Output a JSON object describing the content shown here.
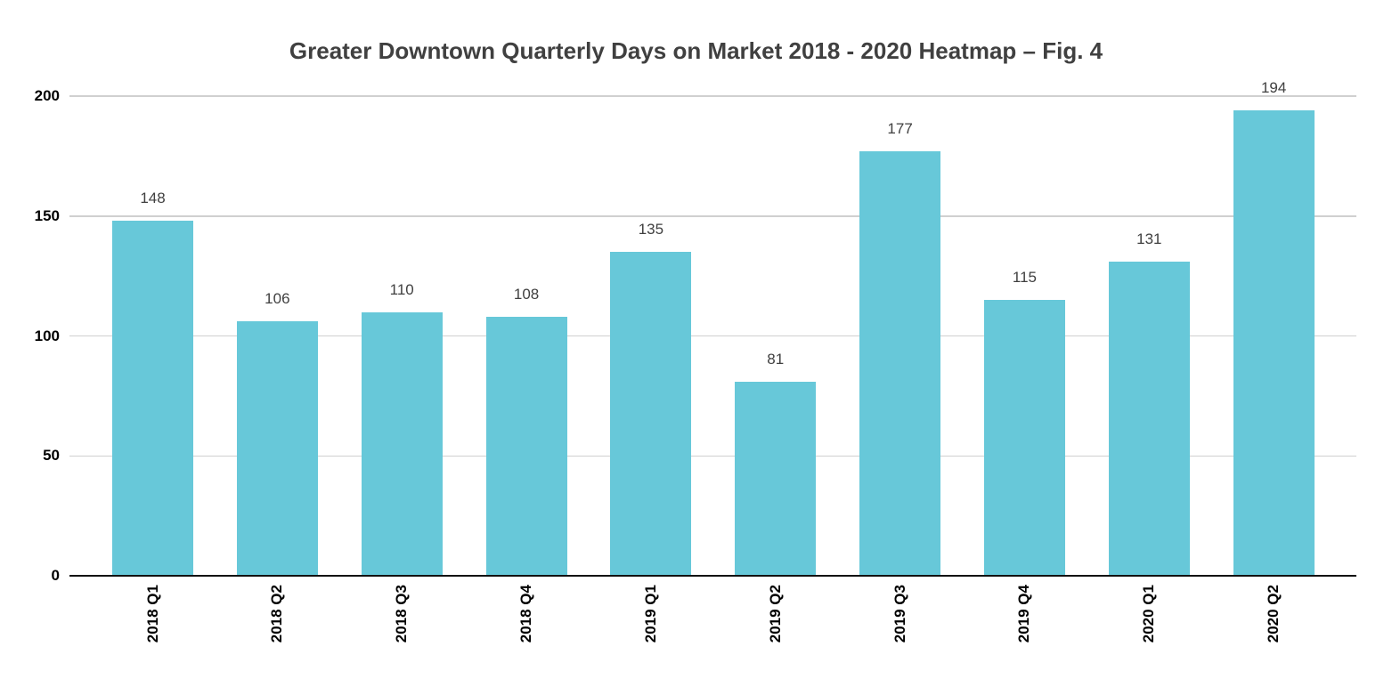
{
  "chart_data": {
    "type": "bar",
    "title": "Greater Downtown Quarterly Days on Market 2018 - 2020 Heatmap – Fig. 4",
    "categories": [
      "2018 Q1",
      "2018 Q2",
      "2018 Q3",
      "2018 Q4",
      "2019 Q1",
      "2019 Q2",
      "2019 Q3",
      "2019 Q4",
      "2020 Q1",
      "2020 Q2"
    ],
    "values": [
      148,
      106,
      110,
      108,
      135,
      81,
      177,
      115,
      131,
      194
    ],
    "value_labels_shown": true,
    "xlabel": "",
    "ylabel": "",
    "ylim": [
      0,
      200
    ],
    "yticks": [
      0,
      50,
      100,
      150,
      200
    ],
    "grid": true,
    "legend": "none",
    "colors": {
      "bar": "#67c8d9",
      "title": "#404040",
      "value_label": "#404040",
      "axis_label": "#000000",
      "gridline": "#d0d0d0",
      "baseline": "#111111"
    }
  }
}
